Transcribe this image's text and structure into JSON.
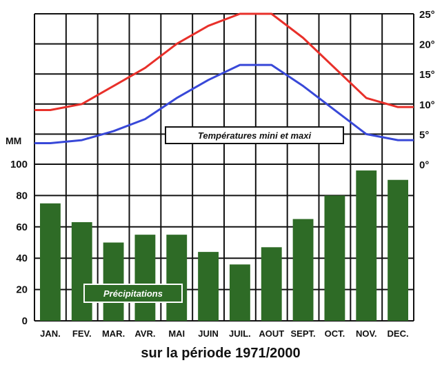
{
  "chart_data": {
    "type": "bar+line",
    "categories": [
      "JAN.",
      "FEV.",
      "MAR.",
      "AVR.",
      "MAI",
      "JUIN",
      "JUIL.",
      "AOUT",
      "SEPT.",
      "OCT.",
      "NOV.",
      "DEC."
    ],
    "precipitation": {
      "label": "Précipitations",
      "unit": "MM",
      "values": [
        75,
        63,
        50,
        55,
        55,
        44,
        36,
        47,
        65,
        80,
        96,
        90
      ],
      "ylim": [
        0,
        100
      ],
      "ticks": [
        "0",
        "20",
        "40",
        "60",
        "80",
        "100"
      ],
      "color": "#2e6b26"
    },
    "temperature": {
      "label": "Températures mini et maxi",
      "ylim": [
        0,
        25
      ],
      "ticks": [
        "0°",
        "5°",
        "10°",
        "15°",
        "20°",
        "25°"
      ],
      "series": [
        {
          "color": "#e8302a",
          "values": [
            9,
            10,
            13,
            16,
            20,
            23,
            25,
            25,
            21,
            16,
            11,
            9.5
          ]
        },
        {
          "color": "#3848d8",
          "values": [
            3.5,
            4,
            5.5,
            7.5,
            11,
            14,
            16.5,
            16.5,
            13,
            9,
            5,
            4
          ]
        }
      ]
    },
    "footer": "sur la période 1971/2000",
    "grid": true
  }
}
